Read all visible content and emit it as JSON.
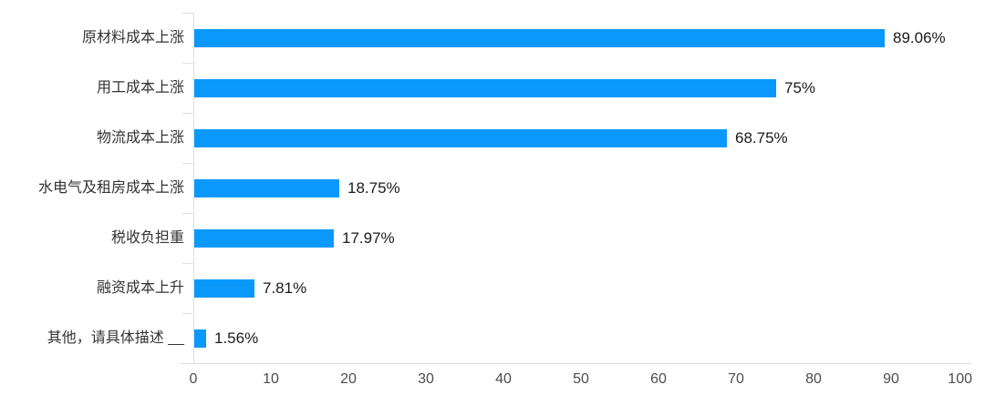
{
  "chart_data": {
    "type": "bar",
    "orientation": "horizontal",
    "categories": [
      "原材料成本上涨",
      "用工成本上涨",
      "物流成本上涨",
      "水电气及租房成本上涨",
      "税收负担重",
      "融资成本上升",
      "其他，请具体描述 __"
    ],
    "values": [
      89.06,
      75,
      68.75,
      18.75,
      17.97,
      7.81,
      1.56
    ],
    "value_labels": [
      "89.06%",
      "75%",
      "68.75%",
      "18.75%",
      "17.97%",
      "7.81%",
      "1.56%"
    ],
    "x_ticks": [
      0,
      10,
      20,
      30,
      40,
      50,
      60,
      70,
      80,
      90,
      100
    ],
    "xlim": [
      0,
      100
    ],
    "title": "",
    "xlabel": "",
    "ylabel": "",
    "grid": false,
    "legend": false,
    "colors": {
      "bar": "#0a99fb",
      "axis": "#dbdfe9",
      "category_text": "#333333",
      "value_text": "#1a1a1a",
      "tick_text": "#4d4d4d",
      "background": "#ffffff"
    }
  }
}
